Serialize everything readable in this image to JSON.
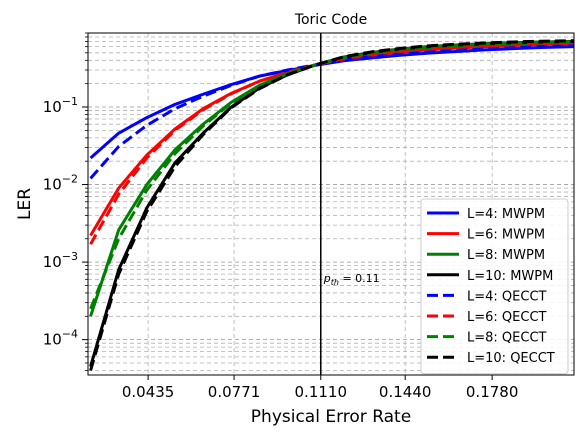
{
  "chart_data": {
    "type": "line",
    "title": "Toric Code",
    "xlabel": "Physical Error Rate",
    "ylabel": "LER",
    "xscale": "linear",
    "yscale": "log",
    "xlim": [
      0.02,
      0.21
    ],
    "ylim": [
      3.5e-05,
      0.9
    ],
    "xticks": [
      0.0435,
      0.0771,
      0.111,
      0.144,
      0.178
    ],
    "xtick_labels": [
      "0.0435",
      "0.0771",
      "0.1110",
      "0.1440",
      "0.1780"
    ],
    "yticks": [
      {
        "value": 0.0001,
        "base": "10",
        "exp": "−4"
      },
      {
        "value": 0.001,
        "base": "10",
        "exp": "−3"
      },
      {
        "value": 0.01,
        "base": "10",
        "exp": "−2"
      },
      {
        "value": 0.1,
        "base": "10",
        "exp": "−1"
      }
    ],
    "grid": true,
    "legend_position": "lower-right",
    "threshold": {
      "x": 0.111,
      "label_base": "p",
      "label_sub": "th",
      "label_value": " = 0.11"
    },
    "x": [
      0.021,
      0.032,
      0.043,
      0.054,
      0.065,
      0.076,
      0.087,
      0.098,
      0.109,
      0.12,
      0.131,
      0.142,
      0.153,
      0.164,
      0.175,
      0.186,
      0.197,
      0.21
    ],
    "series": [
      {
        "name": "L=4: MWPM",
        "color": "#0000ff",
        "dash": "solid",
        "values": [
          0.022,
          0.046,
          0.073,
          0.108,
          0.146,
          0.195,
          0.25,
          0.295,
          0.345,
          0.395,
          0.43,
          0.465,
          0.495,
          0.52,
          0.545,
          0.565,
          0.585,
          0.6
        ]
      },
      {
        "name": "L=6: MWPM",
        "color": "#ff0000",
        "dash": "solid",
        "values": [
          0.0022,
          0.009,
          0.024,
          0.052,
          0.095,
          0.15,
          0.215,
          0.28,
          0.35,
          0.415,
          0.465,
          0.51,
          0.545,
          0.575,
          0.6,
          0.62,
          0.64,
          0.655
        ]
      },
      {
        "name": "L=8: MWPM",
        "color": "#008000",
        "dash": "solid",
        "values": [
          0.0002,
          0.0026,
          0.01,
          0.028,
          0.06,
          0.115,
          0.19,
          0.27,
          0.35,
          0.43,
          0.49,
          0.54,
          0.58,
          0.61,
          0.635,
          0.655,
          0.67,
          0.68
        ]
      },
      {
        "name": "L=10: MWPM",
        "color": "#000000",
        "dash": "solid",
        "values": [
          4.5e-05,
          0.0008,
          0.005,
          0.019,
          0.046,
          0.1,
          0.175,
          0.26,
          0.35,
          0.44,
          0.505,
          0.56,
          0.6,
          0.63,
          0.655,
          0.675,
          0.69,
          0.7
        ]
      },
      {
        "name": "L=4: QECCT",
        "color": "#0000ff",
        "dash": "dashed",
        "values": [
          0.012,
          0.031,
          0.058,
          0.095,
          0.138,
          0.19,
          0.25,
          0.3,
          0.35,
          0.405,
          0.445,
          0.48,
          0.51,
          0.535,
          0.56,
          0.58,
          0.6,
          0.615
        ]
      },
      {
        "name": "L=6: QECCT",
        "color": "#ff0000",
        "dash": "dashed",
        "values": [
          0.0017,
          0.0075,
          0.022,
          0.05,
          0.092,
          0.148,
          0.215,
          0.28,
          0.35,
          0.42,
          0.475,
          0.52,
          0.56,
          0.59,
          0.615,
          0.635,
          0.655,
          0.67
        ]
      },
      {
        "name": "L=8: QECCT",
        "color": "#008000",
        "dash": "dashed",
        "values": [
          0.00025,
          0.002,
          0.0085,
          0.025,
          0.057,
          0.112,
          0.188,
          0.27,
          0.35,
          0.435,
          0.5,
          0.555,
          0.595,
          0.625,
          0.65,
          0.67,
          0.685,
          0.695
        ]
      },
      {
        "name": "L=10: QECCT",
        "color": "#000000",
        "dash": "dashed",
        "values": [
          4e-05,
          0.0007,
          0.0045,
          0.017,
          0.044,
          0.098,
          0.172,
          0.26,
          0.35,
          0.445,
          0.515,
          0.57,
          0.615,
          0.645,
          0.67,
          0.69,
          0.705,
          0.715
        ]
      }
    ]
  }
}
